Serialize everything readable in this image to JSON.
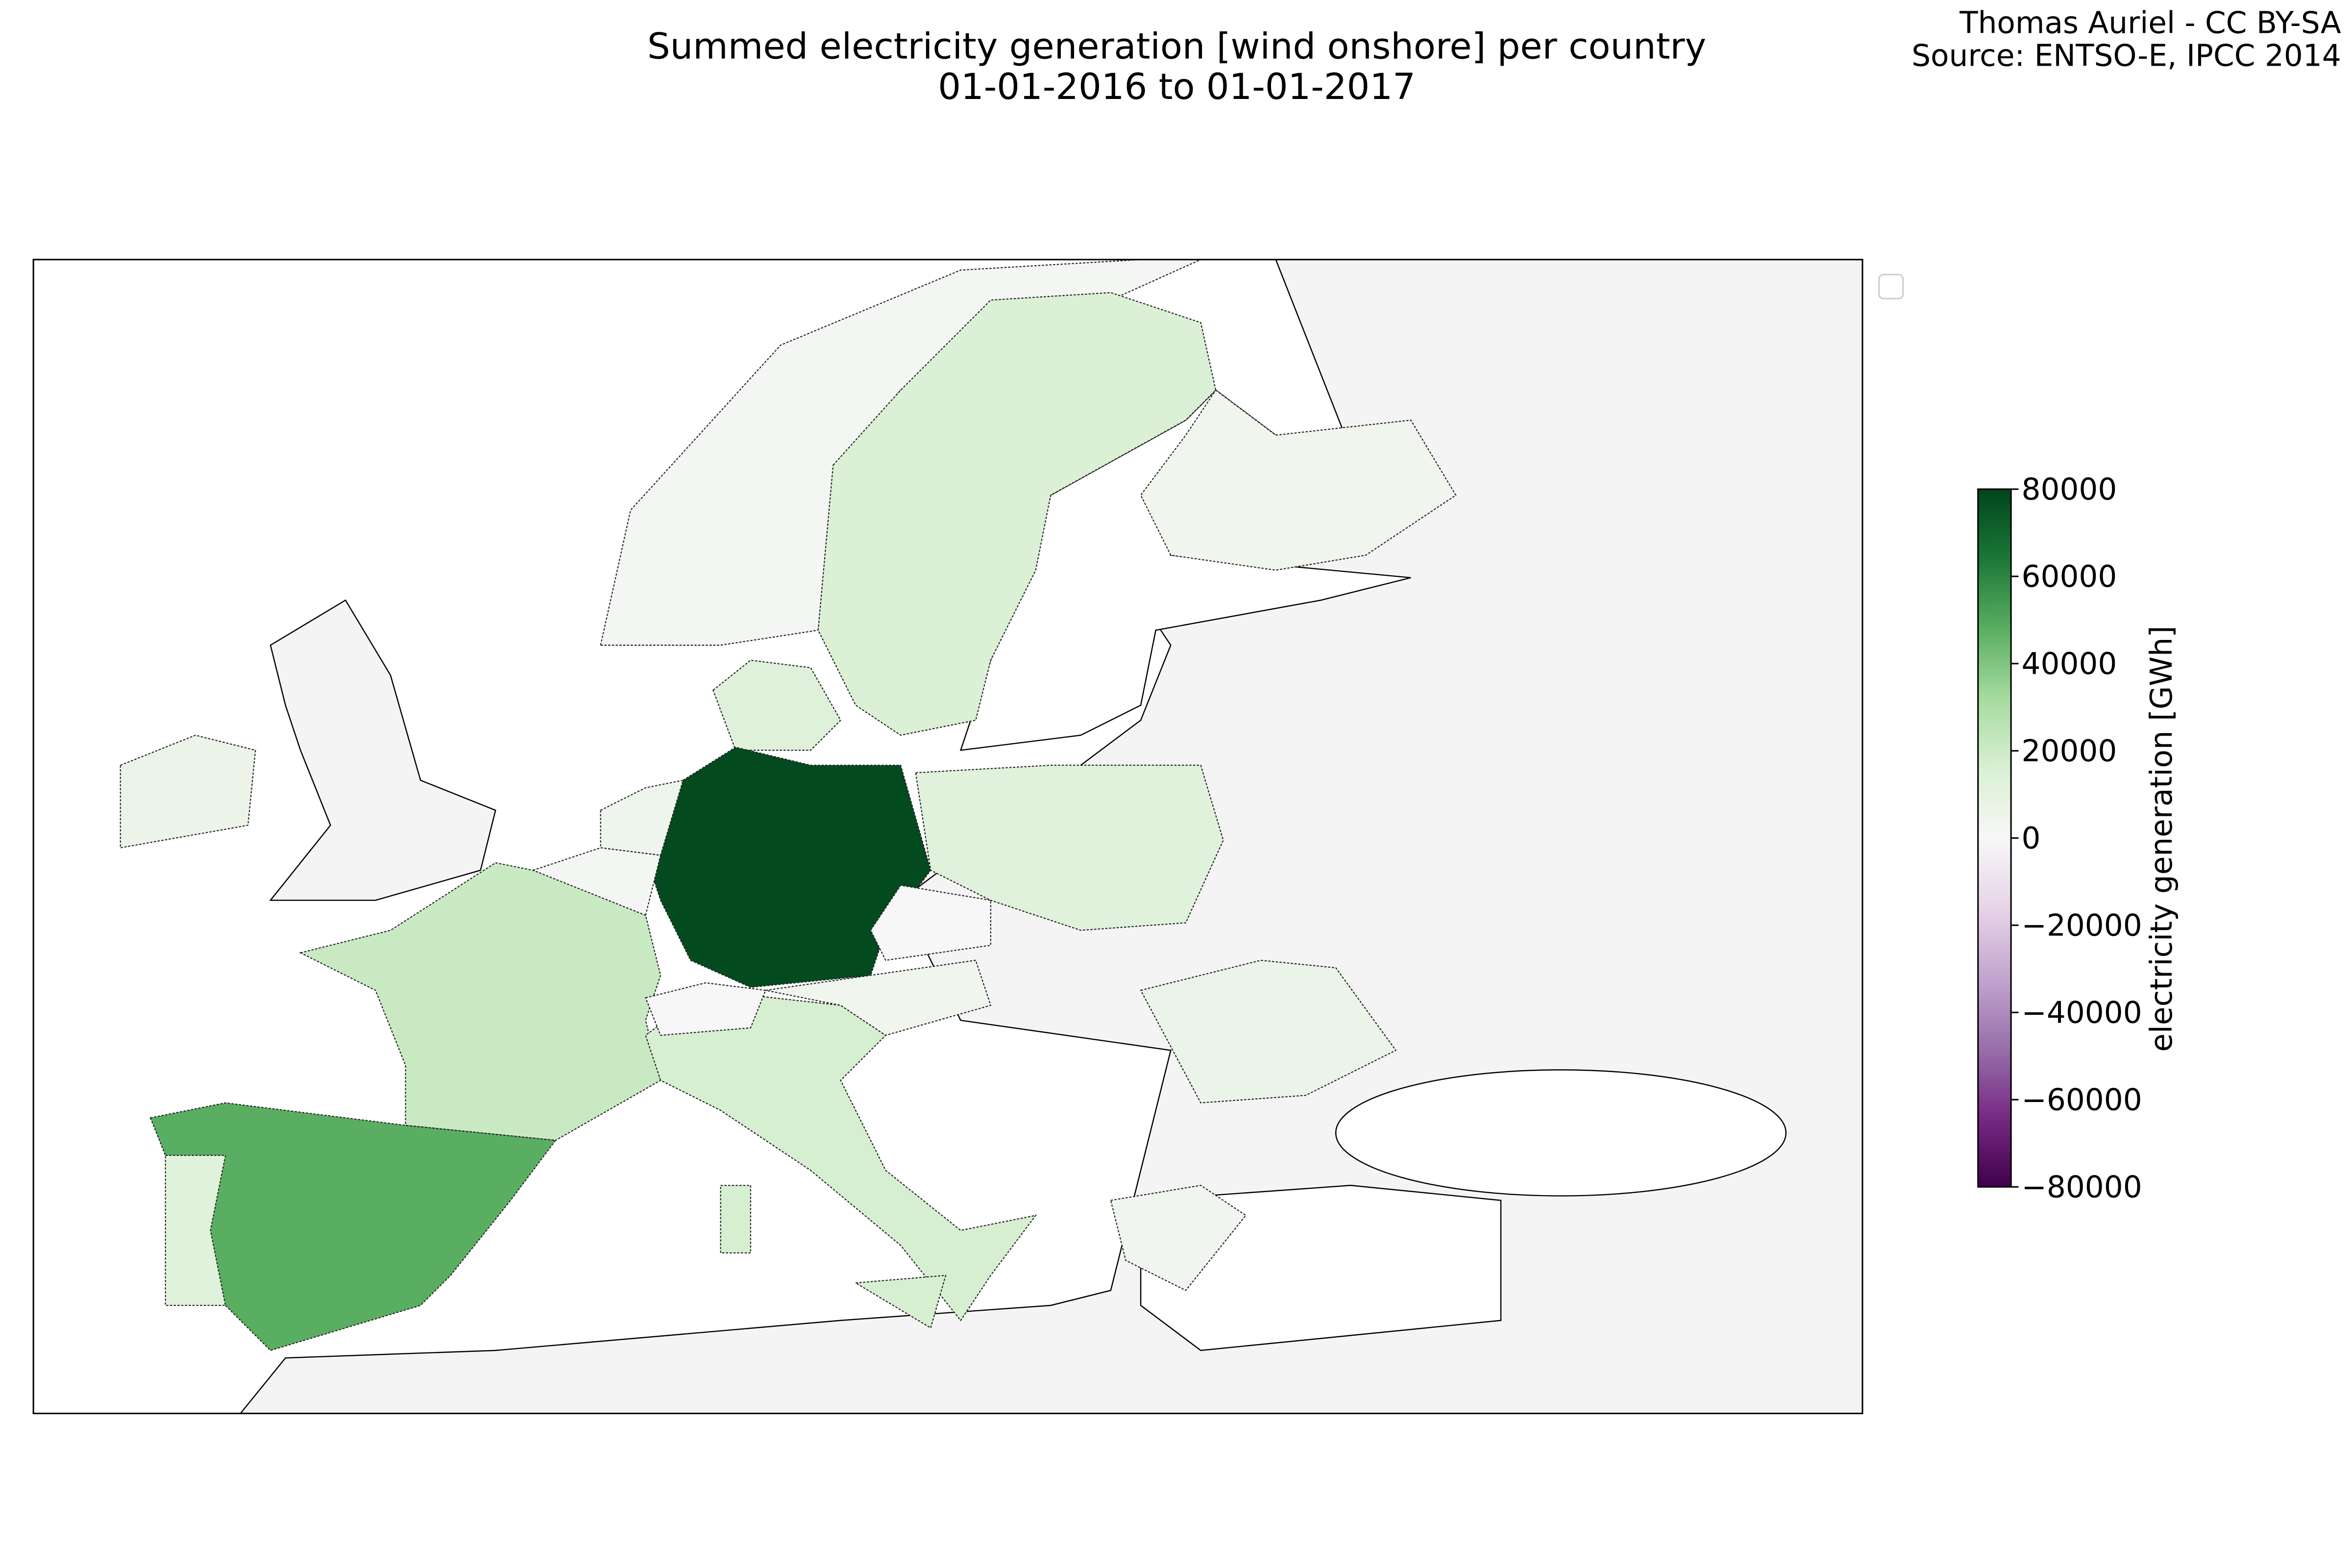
{
  "chart_data": {
    "type": "choropleth",
    "title": "Summed electricity generation [wind onshore] per country",
    "subtitle": "01-01-2016 to 01-01-2017",
    "attribution": [
      "Thomas Auriel - CC BY-SA",
      "Source: ENTSO-E, IPCC 2014"
    ],
    "values": [
      2000,
      15000,
      4000,
      13000,
      6000,
      78000,
      5000,
      2000,
      21000,
      48000,
      12000,
      17000,
      17000,
      17000,
      0,
      4000,
      500,
      12000,
      6500,
      3700
    ],
    "colormap": [
      "#40004b",
      "#762a83",
      "#9970ab",
      "#c2a5cf",
      "#e7d4e8",
      "#f7f7f7",
      "#d9f0d3",
      "#a6dba0",
      "#5aae61",
      "#1b7837",
      "#00441b"
    ],
    "colorbar": {
      "label": "electricity generation [GWh]",
      "lim": [
        -80000,
        80000
      ],
      "ticks": [
        80000,
        60000,
        40000,
        20000,
        0,
        {
          "value": -20000,
          "label": "−20000"
        },
        {
          "value": -40000,
          "label": "−40000"
        },
        {
          "value": -60000,
          "label": "−60000"
        },
        {
          "value": -80000,
          "label": "−80000"
        }
      ]
    }
  }
}
